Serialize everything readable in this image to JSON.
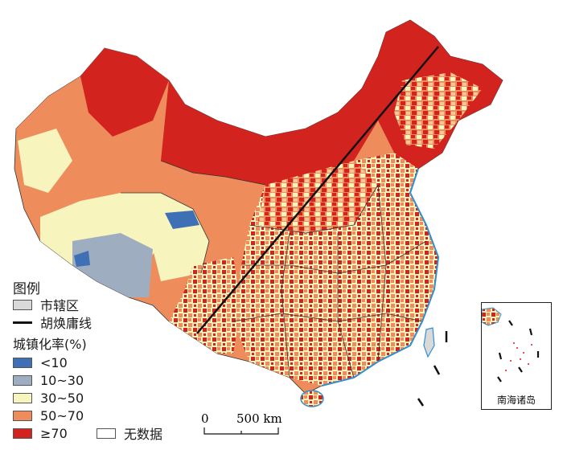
{
  "legend": {
    "title": "图例",
    "municipal_label": "市辖区",
    "huline_label": "胡焕庸线",
    "rate_title": "城镇化率(%)",
    "classes": [
      {
        "label": "<10",
        "color": "#3f6fb5"
      },
      {
        "label": "10~30",
        "color": "#9eadbf"
      },
      {
        "label": "30~50",
        "color": "#f7f4bd"
      },
      {
        "label": "50~70",
        "color": "#ee8c5c"
      },
      {
        "label": "≥70",
        "color": "#d2231e"
      }
    ],
    "nodata_label": "无数据",
    "municipal_color": "#d9d9d9",
    "nodata_color": "#ffffff"
  },
  "scale": {
    "zero": "0",
    "distance": "500 km"
  },
  "inset": {
    "label": "南海诸岛"
  },
  "colors": {
    "coast": "#2f8fd0",
    "boundary": "#333333"
  }
}
